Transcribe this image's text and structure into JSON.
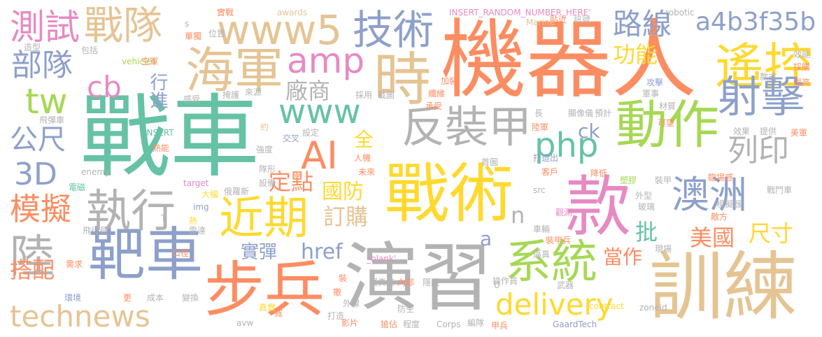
{
  "words": [
    {
      "text": "機器人",
      "color": "#fc8d62"
    },
    {
      "text": "戰車",
      "color": "#66c2a5"
    },
    {
      "text": "演習",
      "color": "#b3b3b3"
    },
    {
      "text": "訓練",
      "color": "#e5c494"
    },
    {
      "text": "戰術",
      "color": "#ffd92f"
    },
    {
      "text": "款",
      "color": "#e78ac3"
    },
    {
      "text": "靶車",
      "color": "#8da0cb"
    },
    {
      "text": "步兵",
      "color": "#fc8d62"
    },
    {
      "text": "www5",
      "color": "#e5c494"
    },
    {
      "text": "技術",
      "color": "#8da0cb"
    },
    {
      "text": "海軍",
      "color": "#e5c494"
    },
    {
      "text": "時",
      "color": "#e5c494"
    },
    {
      "text": "遙控",
      "color": "#ffd92f"
    },
    {
      "text": "射擊",
      "color": "#8da0cb"
    },
    {
      "text": "動作",
      "color": "#a6d854"
    },
    {
      "text": "反裝甲",
      "color": "#b3b3b3"
    },
    {
      "text": "執行",
      "color": "#b3b3b3"
    },
    {
      "text": "近期",
      "color": "#ffd92f"
    },
    {
      "text": "系統",
      "color": "#a6d854"
    },
    {
      "text": "澳洲",
      "color": "#8da0cb"
    },
    {
      "text": "technews",
      "color": "#e5c494"
    },
    {
      "text": "delivery",
      "color": "#ffd92f"
    },
    {
      "text": "戰隊",
      "color": "#e5c494"
    },
    {
      "text": "測試",
      "color": "#e78ac3"
    },
    {
      "text": "部隊",
      "color": "#8da0cb"
    },
    {
      "text": "amp",
      "color": "#e78ac3"
    },
    {
      "text": "www",
      "color": "#66c2a5"
    },
    {
      "text": "php",
      "color": "#66c2a5"
    },
    {
      "text": "AI",
      "color": "#fc8d62"
    },
    {
      "text": "陸",
      "color": "#b3b3b3"
    },
    {
      "text": "3D",
      "color": "#8da0cb"
    },
    {
      "text": "模擬",
      "color": "#fc8d62"
    },
    {
      "text": "公尺",
      "color": "#8da0cb"
    },
    {
      "text": "cb",
      "color": "#e78ac3"
    },
    {
      "text": "tw",
      "color": "#a6d854"
    },
    {
      "text": "路線",
      "color": "#8da0cb"
    },
    {
      "text": "a4b3f35b",
      "color": "#8da0cb"
    },
    {
      "text": "列印",
      "color": "#b3b3b3"
    },
    {
      "text": "功能",
      "color": "#ffd92f"
    },
    {
      "text": "廠商",
      "color": "#b3b3b3"
    },
    {
      "text": "行進",
      "color": "#8da0cb"
    },
    {
      "text": "搭配",
      "color": "#fc8d62"
    },
    {
      "text": "定點",
      "color": "#fc8d62"
    },
    {
      "text": "國防",
      "color": "#ffd92f"
    },
    {
      "text": "訂購",
      "color": "#e5c494"
    },
    {
      "text": "實彈",
      "color": "#8da0cb"
    },
    {
      "text": "href",
      "color": "#8da0cb"
    },
    {
      "text": "美國",
      "color": "#fc8d62"
    },
    {
      "text": "尺寸",
      "color": "#ffd92f"
    },
    {
      "text": "當作",
      "color": "#fc8d62"
    },
    {
      "text": "批",
      "color": "#66c2a5"
    },
    {
      "text": "ck",
      "color": "#8da0cb"
    },
    {
      "text": "全",
      "color": "#ffd92f"
    },
    {
      "text": "n",
      "color": "#b3b3b3"
    },
    {
      "text": "a",
      "color": "#8da0cb"
    },
    {
      "text": "INSERT_RANDOM_NUMBER_HERE'",
      "color": "#e78ac3"
    },
    {
      "text": "實戰",
      "color": "#fc8d62"
    },
    {
      "text": "awards",
      "color": "#e5c494"
    },
    {
      "text": "robotic",
      "color": "#b3b3b3"
    },
    {
      "text": "貼近",
      "color": "#fc8d62"
    },
    {
      "text": "訊號",
      "color": "#b3b3b3"
    },
    {
      "text": "Marine",
      "color": "#e5c494"
    },
    {
      "text": "包括",
      "color": "#b3b3b3"
    },
    {
      "text": "造型",
      "color": "#b3b3b3"
    },
    {
      "text": "vehicles",
      "color": "#a6d854"
    },
    {
      "text": "空軍",
      "color": "#fc8d62"
    },
    {
      "text": "來源",
      "color": "#b3b3b3"
    },
    {
      "text": "掩護",
      "color": "#b3b3b3"
    },
    {
      "text": "採用",
      "color": "#b3b3b3"
    },
    {
      "text": "截圖",
      "color": "#b3b3b3"
    },
    {
      "text": "纖維",
      "color": "#fc8d62"
    },
    {
      "text": "承受",
      "color": "#fc8d62"
    },
    {
      "text": "飛彈車",
      "color": "#b3b3b3"
    },
    {
      "text": "INSERT",
      "color": "#66c2a5"
    },
    {
      "text": "熱能",
      "color": "#fc8d62"
    },
    {
      "text": "交叉",
      "color": "#8da0cb"
    },
    {
      "text": "強度",
      "color": "#b3b3b3"
    },
    {
      "text": "設定",
      "color": "#b3b3b3"
    },
    {
      "text": "enemy",
      "color": "#b3b3b3"
    },
    {
      "text": "電磁",
      "color": "#66c2a5"
    },
    {
      "text": "target",
      "color": "#e78ac3"
    },
    {
      "text": "俄羅斯",
      "color": "#b3b3b3"
    },
    {
      "text": "大幅",
      "color": "#ffd92f"
    },
    {
      "text": "設備",
      "color": "#b3b3b3"
    },
    {
      "text": "img",
      "color": "#8da0cb"
    },
    {
      "text": "熱",
      "color": "#ffd92f"
    },
    {
      "text": "雷達",
      "color": "#b3b3b3"
    },
    {
      "text": "飛行員",
      "color": "#b3b3b3"
    },
    {
      "text": "口徑",
      "color": "#fc8d62"
    },
    {
      "text": "需求",
      "color": "#fc8d62"
    },
    {
      "text": "環境",
      "color": "#8da0cb"
    },
    {
      "text": "更",
      "color": "#fc8d62"
    },
    {
      "text": "成本",
      "color": "#b3b3b3"
    },
    {
      "text": "變換",
      "color": "#b3b3b3"
    },
    {
      "text": "真實",
      "color": "#ffd92f"
    },
    {
      "text": "avw",
      "color": "#b3b3b3"
    },
    {
      "text": "打造",
      "color": "#b3b3b3"
    },
    {
      "text": "撤",
      "color": "#fc8d62"
    },
    {
      "text": "外線",
      "color": "#b3b3b3"
    },
    {
      "text": "影片",
      "color": "#fc8d62"
    },
    {
      "text": "搶佔",
      "color": "#fc8d62"
    },
    {
      "text": "程度",
      "color": "#b3b3b3"
    },
    {
      "text": "Corps",
      "color": "#b3b3b3"
    },
    {
      "text": "編隊",
      "color": "#b3b3b3"
    },
    {
      "text": "甲兵",
      "color": "#fc8d62"
    },
    {
      "text": "GaardTech",
      "color": "#8da0cb"
    },
    {
      "text": "contract",
      "color": "#ffd92f"
    },
    {
      "text": "zoneid",
      "color": "#b3b3b3"
    },
    {
      "text": "裝",
      "color": "#fc8d62"
    },
    {
      "text": "擬真度",
      "color": "#b3b3b3"
    },
    {
      "text": "內部",
      "color": "#fc8d62"
    },
    {
      "text": "隱蔽",
      "color": "#b3b3b3"
    },
    {
      "text": "_blank'",
      "color": "#e78ac3"
    },
    {
      "text": "防空",
      "color": "#b3b3b3"
    },
    {
      "text": "操作員",
      "color": "#b3b3b3"
    },
    {
      "text": "逼真",
      "color": "#b3b3b3"
    },
    {
      "text": "裝甲兵",
      "color": "#fc8d62"
    },
    {
      "text": "武器",
      "color": "#b3b3b3"
    },
    {
      "text": "車輛",
      "color": "#b3b3b3"
    },
    {
      "text": "觀測",
      "color": "#e78ac3"
    },
    {
      "text": "src",
      "color": "#b3b3b3"
    },
    {
      "text": "客戶",
      "color": "#fc8d62"
    },
    {
      "text": "打造出",
      "color": "#8da0cb"
    },
    {
      "text": "首圖",
      "color": "#b3b3b3"
    },
    {
      "text": "未來",
      "color": "#fc8d62"
    },
    {
      "text": "人機",
      "color": "#fc8d62"
    },
    {
      "text": "隊形",
      "color": "#b3b3b3"
    },
    {
      "text": "約",
      "color": "#e5c494"
    },
    {
      "text": "長",
      "color": "#b3b3b3"
    },
    {
      "text": "顯像儀",
      "color": "#b3b3b3"
    },
    {
      "text": "預計",
      "color": "#b3b3b3"
    },
    {
      "text": "陸軍",
      "color": "#fc8d62"
    },
    {
      "text": "可望",
      "color": "#fc8d62"
    },
    {
      "text": "材質",
      "color": "#b3b3b3"
    },
    {
      "text": "加裝",
      "color": "#fc8d62"
    },
    {
      "text": "軍事",
      "color": "#b3b3b3"
    },
    {
      "text": "攻擊",
      "color": "#8da0cb"
    },
    {
      "text": "款式",
      "color": "#b3b3b3"
    },
    {
      "text": "效能",
      "color": "#b3b3b3"
    },
    {
      "text": "採購",
      "color": "#fc8d62"
    },
    {
      "text": "提高",
      "color": "#fc8d62"
    },
    {
      "text": "效果",
      "color": "#b3b3b3"
    },
    {
      "text": "提供",
      "color": "#b3b3b3"
    },
    {
      "text": "美軍",
      "color": "#fc8d62"
    },
    {
      "text": "降低",
      "color": "#fc8d62"
    },
    {
      "text": "臨場感",
      "color": "#fc8d62"
    },
    {
      "text": "塑膠",
      "color": "#a6d854"
    },
    {
      "text": "裝甲",
      "color": "#b3b3b3"
    },
    {
      "text": "外型",
      "color": "#b3b3b3"
    },
    {
      "text": "玻璃",
      "color": "#b3b3b3"
    },
    {
      "text": "模擬器",
      "color": "#b3b3b3"
    },
    {
      "text": "敵方",
      "color": "#fc8d62"
    },
    {
      "text": "戰鬥車",
      "color": "#b3b3b3"
    },
    {
      "text": "現場",
      "color": "#b3b3b3"
    },
    {
      "text": "感受",
      "color": "#b3b3b3"
    },
    {
      "text": "T",
      "color": "#b3b3b3"
    },
    {
      "text": "U",
      "color": "#b3b3b3"
    },
    {
      "text": "s",
      "color": "#b3b3b3"
    },
    {
      "text": "單獨",
      "color": "#fc8d62"
    },
    {
      "text": "位置",
      "color": "#b3b3b3"
    },
    {
      "text": "寬",
      "color": "#fc8d62"
    },
    {
      "text": "紅",
      "color": "#b3b3b3"
    }
  ]
}
